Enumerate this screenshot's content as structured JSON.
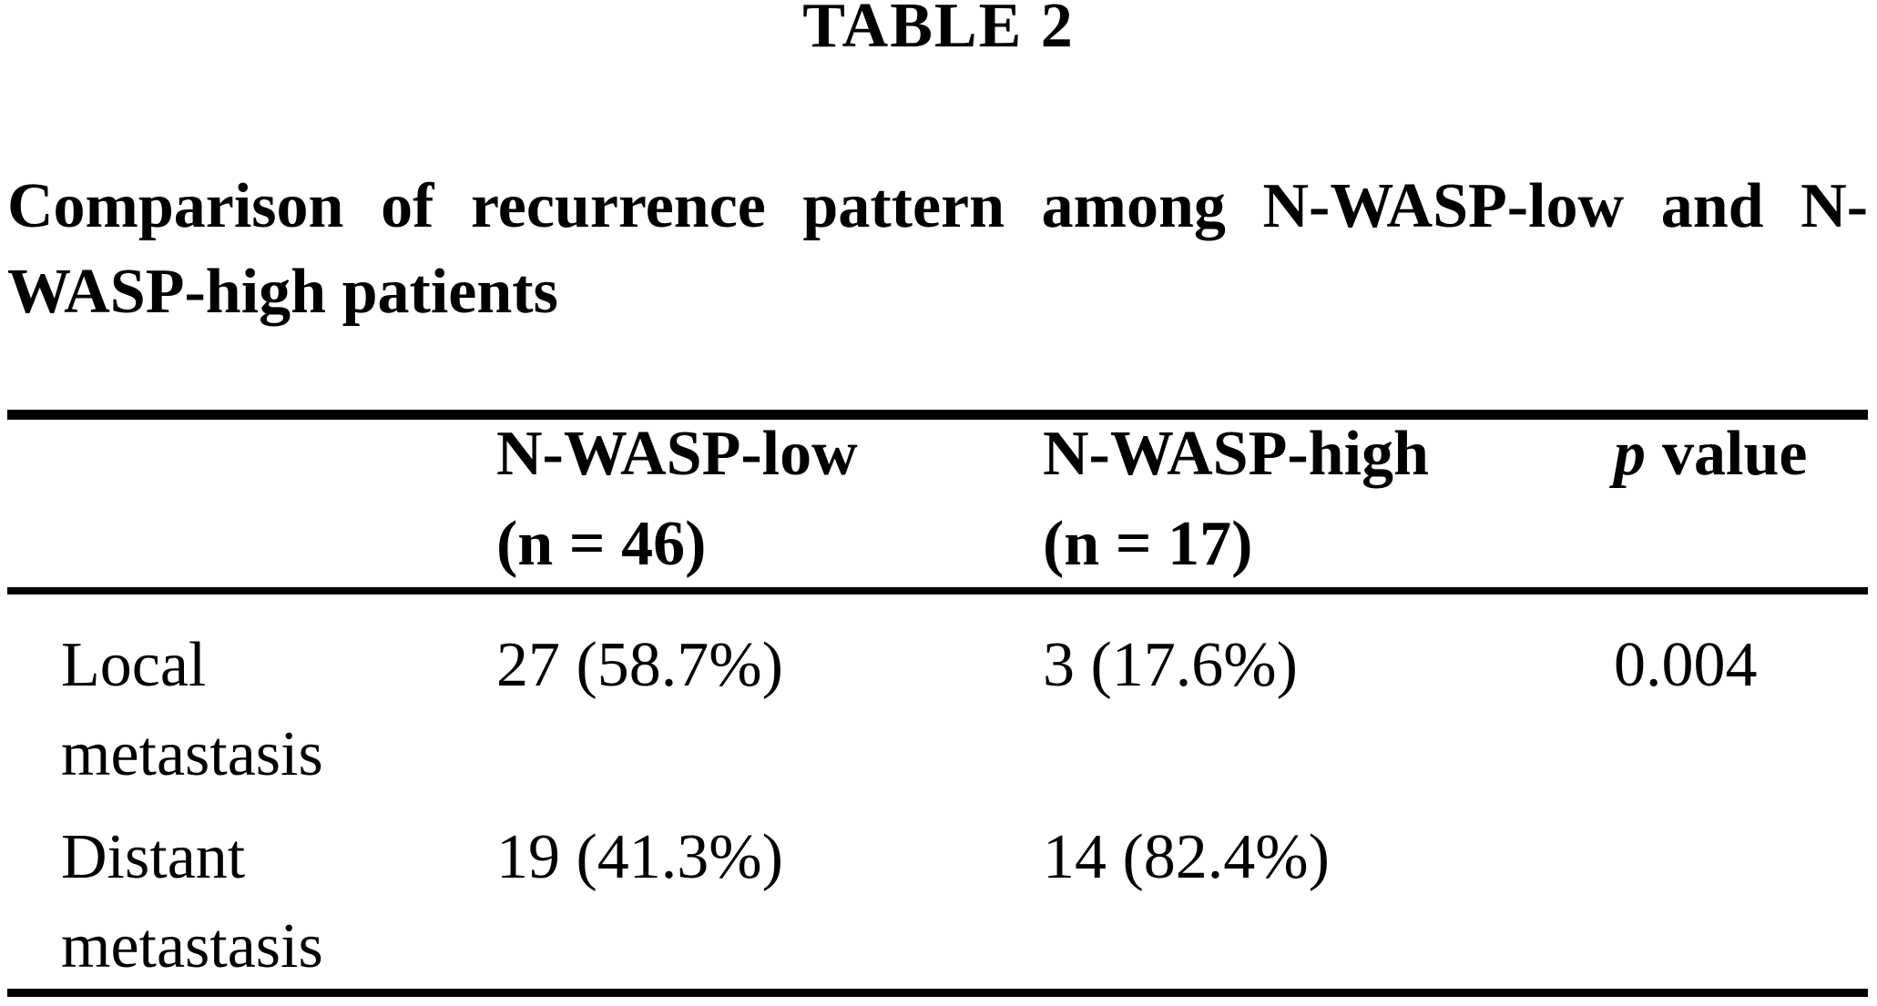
{
  "title": "TABLE 2",
  "caption": {
    "line1": "Comparison of recurrence pattern among N-WASP-low and N-",
    "line2": "WASP-high patients",
    "full_text": "Comparison of recurrence pattern among N-WASP-low and N-WASP-high patients"
  },
  "table": {
    "header": {
      "row_label_column": "",
      "nwasp_low": {
        "title": "N-WASP-low",
        "subtitle": "(n = 46)"
      },
      "nwasp_high": {
        "title": "N-WASP-high",
        "subtitle": "(n = 17)"
      },
      "p_value": {
        "symbol": "p",
        "word": "value"
      }
    },
    "rows": [
      {
        "label": "Local metastasis",
        "nwasp_low": "27 (58.7%)",
        "nwasp_high": "3 (17.6%)",
        "p_value": "0.004"
      },
      {
        "label": "Distant metastasis",
        "nwasp_low": "19 (41.3%)",
        "nwasp_high": "14 (82.4%)",
        "p_value": ""
      }
    ]
  },
  "colors": {
    "text": "#000000",
    "background": "#ffffff",
    "rule": "#000000"
  }
}
